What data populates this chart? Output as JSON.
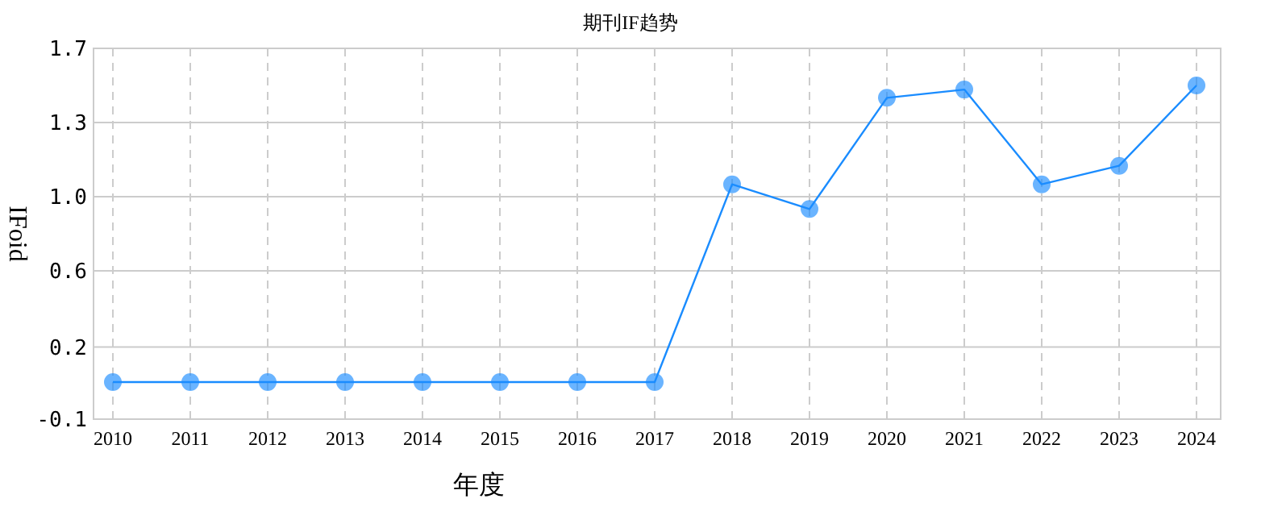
{
  "chart_data": {
    "type": "line",
    "title": "期刊IF趋势",
    "xlabel": "年度",
    "ylabel": "IFoid",
    "categories": [
      "2010",
      "2011",
      "2012",
      "2013",
      "2014",
      "2015",
      "2016",
      "2017",
      "2018",
      "2019",
      "2020",
      "2021",
      "2022",
      "2023",
      "2024"
    ],
    "series": [
      {
        "color": "#1a8cff",
        "values": [
          0.08,
          0.08,
          0.08,
          0.08,
          0.08,
          0.08,
          0.08,
          0.08,
          1.04,
          0.92,
          1.46,
          1.5,
          1.04,
          1.13,
          1.52
        ]
      }
    ],
    "ylim": [
      -0.1,
      1.7
    ],
    "yticks": [
      -0.1,
      {
        "value": 0.25,
        "label": "0.2"
      },
      {
        "value": 0.62,
        "label": "0.6"
      },
      {
        "value": 0.98,
        "label": "1.0"
      },
      {
        "value": 1.34,
        "label": "1.3"
      },
      1.7
    ],
    "grid": true,
    "marker": "circle",
    "line_style": "solid"
  }
}
